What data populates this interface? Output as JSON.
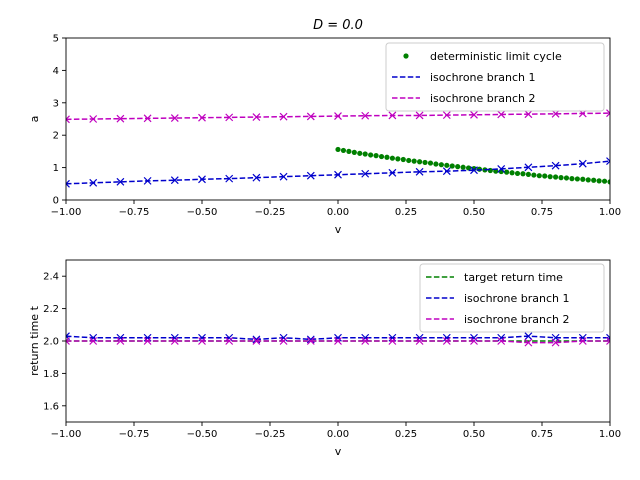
{
  "chart_data": [
    {
      "type": "line",
      "title": "D = 0.0",
      "xlabel": "v",
      "ylabel": "a",
      "xlim": [
        -1.0,
        1.0
      ],
      "ylim": [
        0,
        5
      ],
      "xticks": [
        "−1.00",
        "−0.75",
        "−0.50",
        "−0.25",
        "0.00",
        "0.25",
        "0.50",
        "0.75",
        "1.00"
      ],
      "xtick_values": [
        -1.0,
        -0.75,
        -0.5,
        -0.25,
        0.0,
        0.25,
        0.5,
        0.75,
        1.0
      ],
      "yticks": [
        "0",
        "1",
        "2",
        "3",
        "4",
        "5"
      ],
      "ytick_values": [
        0,
        1,
        2,
        3,
        4,
        5
      ],
      "grid": false,
      "legend_position": "top-right",
      "series": [
        {
          "name": "deterministic limit cycle",
          "style": "dots",
          "color": "#008000",
          "x": [
            0.0,
            0.02,
            0.04,
            0.06,
            0.08,
            0.1,
            0.12,
            0.14,
            0.16,
            0.18,
            0.2,
            0.22,
            0.24,
            0.26,
            0.28,
            0.3,
            0.32,
            0.34,
            0.36,
            0.38,
            0.4,
            0.42,
            0.44,
            0.46,
            0.48,
            0.5,
            0.52,
            0.54,
            0.56,
            0.58,
            0.6,
            0.62,
            0.64,
            0.66,
            0.68,
            0.7,
            0.72,
            0.74,
            0.76,
            0.78,
            0.8,
            0.82,
            0.84,
            0.86,
            0.88,
            0.9,
            0.92,
            0.94,
            0.96,
            0.98,
            1.0
          ],
          "y": [
            1.56,
            1.53,
            1.5,
            1.47,
            1.44,
            1.42,
            1.39,
            1.37,
            1.34,
            1.32,
            1.29,
            1.27,
            1.25,
            1.22,
            1.2,
            1.18,
            1.16,
            1.14,
            1.11,
            1.09,
            1.07,
            1.05,
            1.03,
            1.01,
            0.99,
            0.97,
            0.95,
            0.93,
            0.91,
            0.89,
            0.88,
            0.86,
            0.84,
            0.82,
            0.81,
            0.79,
            0.77,
            0.75,
            0.74,
            0.72,
            0.71,
            0.69,
            0.68,
            0.66,
            0.65,
            0.64,
            0.62,
            0.61,
            0.59,
            0.58,
            0.56
          ]
        },
        {
          "name": "isochrone branch 1",
          "style": "dashed-x",
          "color": "#0000cc",
          "x": [
            -1.0,
            -0.9,
            -0.8,
            -0.7,
            -0.6,
            -0.5,
            -0.4,
            -0.3,
            -0.2,
            -0.1,
            0.0,
            0.1,
            0.2,
            0.3,
            0.4,
            0.5,
            0.6,
            0.7,
            0.8,
            0.9,
            1.0
          ],
          "y": [
            0.5,
            0.53,
            0.56,
            0.59,
            0.61,
            0.64,
            0.66,
            0.69,
            0.72,
            0.75,
            0.78,
            0.81,
            0.84,
            0.87,
            0.89,
            0.92,
            0.96,
            1.01,
            1.06,
            1.12,
            1.2
          ]
        },
        {
          "name": "isochrone branch 2",
          "style": "dashed-x",
          "color": "#bf00bf",
          "x": [
            -1.0,
            -0.9,
            -0.8,
            -0.7,
            -0.6,
            -0.5,
            -0.4,
            -0.3,
            -0.2,
            -0.1,
            0.0,
            0.1,
            0.2,
            0.3,
            0.4,
            0.5,
            0.6,
            0.7,
            0.8,
            0.9,
            1.0
          ],
          "y": [
            2.49,
            2.5,
            2.51,
            2.52,
            2.53,
            2.54,
            2.55,
            2.56,
            2.57,
            2.58,
            2.59,
            2.6,
            2.61,
            2.61,
            2.62,
            2.63,
            2.64,
            2.65,
            2.66,
            2.67,
            2.68
          ]
        }
      ]
    },
    {
      "type": "line",
      "title": "",
      "xlabel": "v",
      "ylabel": "return time t",
      "xlim": [
        -1.0,
        1.0
      ],
      "ylim": [
        1.5,
        2.5
      ],
      "xticks": [
        "−1.00",
        "−0.75",
        "−0.50",
        "−0.25",
        "0.00",
        "0.25",
        "0.50",
        "0.75",
        "1.00"
      ],
      "xtick_values": [
        -1.0,
        -0.75,
        -0.5,
        -0.25,
        0.0,
        0.25,
        0.5,
        0.75,
        1.0
      ],
      "yticks": [
        "1.6",
        "1.8",
        "2.0",
        "2.2",
        "2.4"
      ],
      "ytick_values": [
        1.6,
        1.8,
        2.0,
        2.2,
        2.4
      ],
      "grid": false,
      "legend_position": "top-right",
      "series": [
        {
          "name": "target return time",
          "style": "dashed",
          "color": "#008000",
          "x": [
            -1.0,
            1.0
          ],
          "y": [
            2.0,
            2.0
          ]
        },
        {
          "name": "isochrone branch 1",
          "style": "dashed-x",
          "color": "#0000cc",
          "x": [
            -1.0,
            -0.9,
            -0.8,
            -0.7,
            -0.6,
            -0.5,
            -0.4,
            -0.3,
            -0.2,
            -0.1,
            0.0,
            0.1,
            0.2,
            0.3,
            0.4,
            0.5,
            0.6,
            0.7,
            0.8,
            0.9,
            1.0
          ],
          "y": [
            2.03,
            2.02,
            2.02,
            2.02,
            2.02,
            2.02,
            2.02,
            2.01,
            2.02,
            2.01,
            2.02,
            2.02,
            2.02,
            2.02,
            2.02,
            2.02,
            2.02,
            2.03,
            2.02,
            2.02,
            2.02
          ]
        },
        {
          "name": "isochrone branch 2",
          "style": "dashed-x",
          "color": "#bf00bf",
          "x": [
            -1.0,
            -0.9,
            -0.8,
            -0.7,
            -0.6,
            -0.5,
            -0.4,
            -0.3,
            -0.2,
            -0.1,
            0.0,
            0.1,
            0.2,
            0.3,
            0.4,
            0.5,
            0.6,
            0.7,
            0.8,
            0.9,
            1.0
          ],
          "y": [
            2.0,
            2.0,
            2.0,
            2.0,
            2.0,
            2.0,
            2.0,
            2.0,
            2.0,
            2.0,
            2.0,
            2.0,
            2.0,
            2.0,
            2.0,
            2.0,
            2.0,
            1.99,
            1.99,
            2.0,
            2.0
          ]
        }
      ]
    }
  ]
}
